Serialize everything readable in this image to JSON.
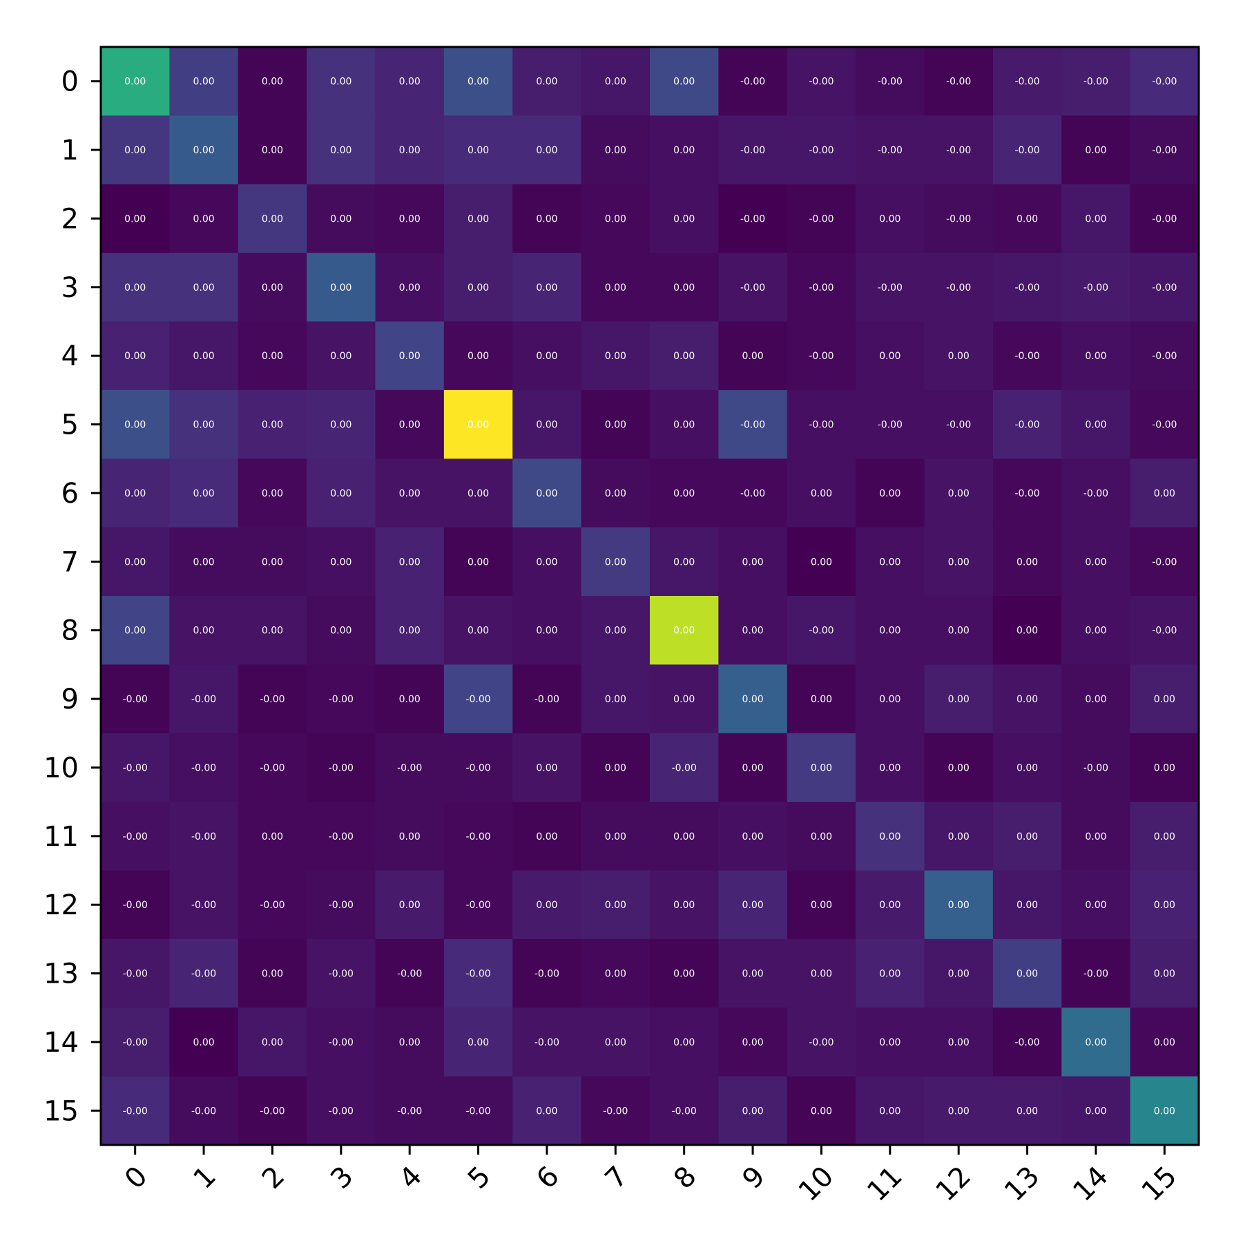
{
  "chart_data": {
    "type": "heatmap",
    "title": "",
    "xlabel": "",
    "ylabel": "",
    "colormap": "viridis",
    "x_ticks": [
      "0",
      "1",
      "2",
      "3",
      "4",
      "5",
      "6",
      "7",
      "8",
      "9",
      "10",
      "11",
      "12",
      "13",
      "14",
      "15"
    ],
    "y_ticks": [
      "0",
      "1",
      "2",
      "3",
      "4",
      "5",
      "6",
      "7",
      "8",
      "9",
      "10",
      "11",
      "12",
      "13",
      "14",
      "15"
    ],
    "intensity": [
      [
        0.62,
        0.18,
        0.01,
        0.14,
        0.1,
        0.24,
        0.08,
        0.06,
        0.22,
        0.01,
        0.05,
        0.03,
        0.01,
        0.07,
        0.08,
        0.12
      ],
      [
        0.16,
        0.28,
        0.01,
        0.14,
        0.1,
        0.12,
        0.12,
        0.03,
        0.04,
        0.06,
        0.06,
        0.05,
        0.05,
        0.1,
        0.01,
        0.03
      ],
      [
        0.0,
        0.02,
        0.16,
        0.03,
        0.02,
        0.08,
        0.01,
        0.02,
        0.04,
        0.0,
        0.01,
        0.04,
        0.03,
        0.02,
        0.06,
        0.01
      ],
      [
        0.14,
        0.14,
        0.03,
        0.28,
        0.04,
        0.08,
        0.1,
        0.02,
        0.02,
        0.05,
        0.02,
        0.05,
        0.05,
        0.06,
        0.07,
        0.06
      ],
      [
        0.09,
        0.06,
        0.02,
        0.05,
        0.2,
        0.02,
        0.04,
        0.06,
        0.08,
        0.01,
        0.02,
        0.04,
        0.05,
        0.02,
        0.04,
        0.03
      ],
      [
        0.24,
        0.14,
        0.09,
        0.1,
        0.02,
        1.0,
        0.06,
        0.01,
        0.04,
        0.22,
        0.04,
        0.04,
        0.04,
        0.09,
        0.06,
        0.02
      ],
      [
        0.1,
        0.12,
        0.02,
        0.09,
        0.05,
        0.05,
        0.22,
        0.03,
        0.02,
        0.02,
        0.04,
        0.01,
        0.05,
        0.02,
        0.04,
        0.08
      ],
      [
        0.06,
        0.03,
        0.03,
        0.04,
        0.09,
        0.01,
        0.04,
        0.17,
        0.06,
        0.04,
        0.0,
        0.04,
        0.05,
        0.02,
        0.04,
        0.02
      ],
      [
        0.2,
        0.05,
        0.05,
        0.03,
        0.09,
        0.05,
        0.04,
        0.06,
        0.9,
        0.04,
        0.06,
        0.04,
        0.04,
        0.0,
        0.04,
        0.05
      ],
      [
        0.01,
        0.06,
        0.01,
        0.02,
        0.01,
        0.2,
        0.01,
        0.06,
        0.05,
        0.3,
        0.01,
        0.04,
        0.08,
        0.05,
        0.03,
        0.08
      ],
      [
        0.06,
        0.04,
        0.02,
        0.01,
        0.03,
        0.03,
        0.05,
        0.01,
        0.1,
        0.01,
        0.17,
        0.04,
        0.01,
        0.04,
        0.03,
        0.01
      ],
      [
        0.04,
        0.05,
        0.02,
        0.02,
        0.03,
        0.02,
        0.01,
        0.03,
        0.03,
        0.04,
        0.03,
        0.14,
        0.06,
        0.08,
        0.03,
        0.08
      ],
      [
        0.01,
        0.05,
        0.02,
        0.03,
        0.07,
        0.02,
        0.07,
        0.08,
        0.05,
        0.1,
        0.01,
        0.07,
        0.3,
        0.06,
        0.04,
        0.09
      ],
      [
        0.06,
        0.1,
        0.01,
        0.05,
        0.01,
        0.12,
        0.01,
        0.02,
        0.01,
        0.05,
        0.05,
        0.09,
        0.06,
        0.18,
        0.01,
        0.08
      ],
      [
        0.08,
        0.0,
        0.06,
        0.04,
        0.03,
        0.1,
        0.05,
        0.05,
        0.04,
        0.02,
        0.05,
        0.04,
        0.04,
        0.01,
        0.35,
        0.02
      ],
      [
        0.12,
        0.03,
        0.01,
        0.04,
        0.03,
        0.03,
        0.09,
        0.02,
        0.04,
        0.08,
        0.01,
        0.06,
        0.07,
        0.07,
        0.06,
        0.45
      ]
    ],
    "labels": [
      [
        "0.00",
        "0.00",
        "0.00",
        "0.00",
        "0.00",
        "0.00",
        "0.00",
        "0.00",
        "0.00",
        "-0.00",
        "-0.00",
        "-0.00",
        "-0.00",
        "-0.00",
        "-0.00",
        "-0.00"
      ],
      [
        "0.00",
        "0.00",
        "0.00",
        "0.00",
        "0.00",
        "0.00",
        "0.00",
        "0.00",
        "0.00",
        "-0.00",
        "-0.00",
        "-0.00",
        "-0.00",
        "-0.00",
        "0.00",
        "-0.00"
      ],
      [
        "0.00",
        "0.00",
        "0.00",
        "0.00",
        "0.00",
        "0.00",
        "0.00",
        "0.00",
        "0.00",
        "-0.00",
        "-0.00",
        "0.00",
        "-0.00",
        "0.00",
        "0.00",
        "-0.00"
      ],
      [
        "0.00",
        "0.00",
        "0.00",
        "0.00",
        "0.00",
        "0.00",
        "0.00",
        "0.00",
        "0.00",
        "-0.00",
        "-0.00",
        "-0.00",
        "-0.00",
        "-0.00",
        "-0.00",
        "-0.00"
      ],
      [
        "0.00",
        "0.00",
        "0.00",
        "0.00",
        "0.00",
        "0.00",
        "0.00",
        "0.00",
        "0.00",
        "0.00",
        "-0.00",
        "0.00",
        "0.00",
        "-0.00",
        "0.00",
        "-0.00"
      ],
      [
        "0.00",
        "0.00",
        "0.00",
        "0.00",
        "0.00",
        "0.00",
        "0.00",
        "0.00",
        "0.00",
        "-0.00",
        "-0.00",
        "-0.00",
        "-0.00",
        "-0.00",
        "0.00",
        "-0.00"
      ],
      [
        "0.00",
        "0.00",
        "0.00",
        "0.00",
        "0.00",
        "0.00",
        "0.00",
        "0.00",
        "0.00",
        "-0.00",
        "0.00",
        "0.00",
        "0.00",
        "-0.00",
        "-0.00",
        "0.00"
      ],
      [
        "0.00",
        "0.00",
        "0.00",
        "0.00",
        "0.00",
        "0.00",
        "0.00",
        "0.00",
        "0.00",
        "0.00",
        "0.00",
        "0.00",
        "0.00",
        "0.00",
        "0.00",
        "-0.00"
      ],
      [
        "0.00",
        "0.00",
        "0.00",
        "0.00",
        "0.00",
        "0.00",
        "0.00",
        "0.00",
        "0.00",
        "0.00",
        "-0.00",
        "0.00",
        "0.00",
        "0.00",
        "0.00",
        "-0.00"
      ],
      [
        "-0.00",
        "-0.00",
        "-0.00",
        "-0.00",
        "0.00",
        "-0.00",
        "-0.00",
        "0.00",
        "0.00",
        "0.00",
        "0.00",
        "0.00",
        "0.00",
        "0.00",
        "0.00",
        "0.00"
      ],
      [
        "-0.00",
        "-0.00",
        "-0.00",
        "-0.00",
        "-0.00",
        "-0.00",
        "0.00",
        "0.00",
        "-0.00",
        "0.00",
        "0.00",
        "0.00",
        "0.00",
        "0.00",
        "-0.00",
        "0.00"
      ],
      [
        "-0.00",
        "-0.00",
        "0.00",
        "-0.00",
        "0.00",
        "-0.00",
        "0.00",
        "0.00",
        "0.00",
        "0.00",
        "0.00",
        "0.00",
        "0.00",
        "0.00",
        "0.00",
        "0.00"
      ],
      [
        "-0.00",
        "-0.00",
        "-0.00",
        "-0.00",
        "0.00",
        "-0.00",
        "0.00",
        "0.00",
        "0.00",
        "0.00",
        "0.00",
        "0.00",
        "0.00",
        "0.00",
        "0.00",
        "0.00"
      ],
      [
        "-0.00",
        "-0.00",
        "0.00",
        "-0.00",
        "-0.00",
        "-0.00",
        "-0.00",
        "0.00",
        "0.00",
        "0.00",
        "0.00",
        "0.00",
        "0.00",
        "0.00",
        "-0.00",
        "0.00"
      ],
      [
        "-0.00",
        "0.00",
        "0.00",
        "-0.00",
        "0.00",
        "0.00",
        "-0.00",
        "0.00",
        "0.00",
        "0.00",
        "-0.00",
        "0.00",
        "0.00",
        "-0.00",
        "0.00",
        "0.00"
      ],
      [
        "-0.00",
        "-0.00",
        "-0.00",
        "-0.00",
        "-0.00",
        "-0.00",
        "0.00",
        "-0.00",
        "-0.00",
        "0.00",
        "0.00",
        "0.00",
        "0.00",
        "0.00",
        "0.00",
        "0.00"
      ]
    ],
    "grid": false,
    "legend": "none"
  }
}
